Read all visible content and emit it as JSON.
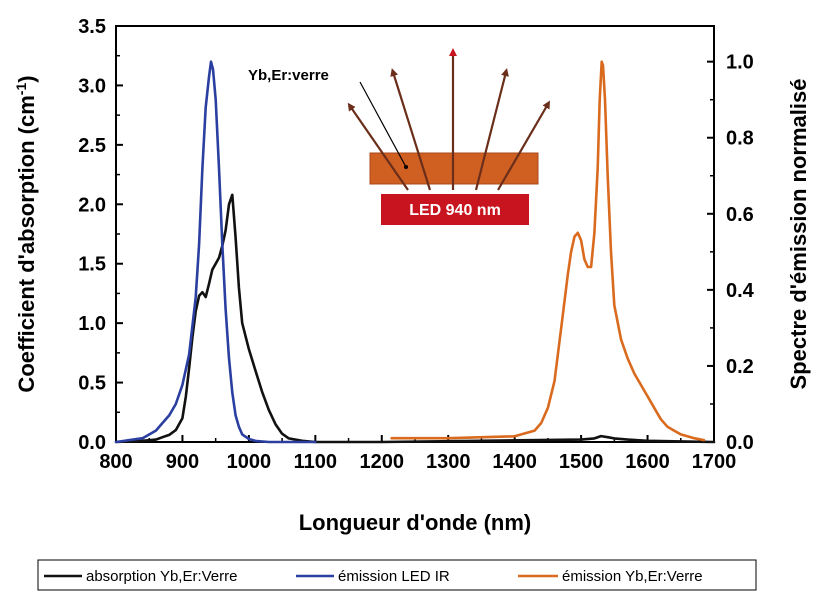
{
  "chart_data": {
    "type": "line",
    "xlabel": "Longueur d'onde (nm)",
    "ylabel_left": "Coefficient d'absorption (cm",
    "ylabel_left_sup": "-1",
    "ylabel_left_end": ")",
    "ylabel_right": "Spectre d'émission normalisé",
    "xlim": [
      800,
      1700
    ],
    "ylim_left": [
      0,
      3.5
    ],
    "ylim_right": [
      0,
      1.09375
    ],
    "x_ticks": [
      800,
      900,
      1000,
      1100,
      1200,
      1300,
      1400,
      1500,
      1600,
      1700
    ],
    "y_left_ticks": [
      "0.0",
      "0.5",
      "1.0",
      "1.5",
      "2.0",
      "2.5",
      "3.0",
      "3.5"
    ],
    "y_right_ticks": [
      "0.0",
      "0.2",
      "0.4",
      "0.6",
      "0.8",
      "1.0"
    ],
    "legend_position": "bottom",
    "series": [
      {
        "name": "absorption Yb,Er:Verre",
        "axis": "left",
        "color": "#111111",
        "x": [
          800,
          840,
          860,
          870,
          880,
          890,
          900,
          905,
          910,
          915,
          920,
          925,
          930,
          935,
          940,
          945,
          950,
          955,
          960,
          965,
          970,
          975,
          980,
          985,
          990,
          1000,
          1010,
          1020,
          1030,
          1040,
          1050,
          1060,
          1080,
          1100,
          1200,
          1500,
          1520,
          1530,
          1540,
          1550,
          1570,
          1600,
          1650,
          1700
        ],
        "y": [
          0.0,
          0.01,
          0.02,
          0.04,
          0.06,
          0.1,
          0.2,
          0.38,
          0.62,
          0.88,
          1.1,
          1.23,
          1.26,
          1.22,
          1.33,
          1.45,
          1.5,
          1.55,
          1.65,
          1.78,
          2.0,
          2.08,
          1.72,
          1.3,
          1.0,
          0.78,
          0.6,
          0.42,
          0.27,
          0.15,
          0.07,
          0.03,
          0.01,
          0.0,
          0.0,
          0.02,
          0.03,
          0.05,
          0.04,
          0.03,
          0.02,
          0.01,
          0.005,
          0.0
        ]
      },
      {
        "name": "émission LED IR",
        "axis": "right",
        "color": "#2b3fa0",
        "x": [
          800,
          840,
          860,
          870,
          880,
          890,
          900,
          910,
          920,
          925,
          930,
          935,
          940,
          943,
          946,
          950,
          955,
          960,
          965,
          970,
          975,
          980,
          985,
          990,
          1000,
          1010,
          1030,
          1100
        ],
        "y": [
          0.0,
          0.01,
          0.03,
          0.05,
          0.07,
          0.1,
          0.15,
          0.23,
          0.38,
          0.52,
          0.72,
          0.88,
          0.96,
          1.0,
          0.98,
          0.9,
          0.72,
          0.52,
          0.35,
          0.22,
          0.13,
          0.07,
          0.04,
          0.02,
          0.008,
          0.003,
          0.0,
          0.0
        ]
      },
      {
        "name": "émission Yb,Er:Verre",
        "axis": "right",
        "color": "#d96a1e",
        "x": [
          1215,
          1300,
          1400,
          1430,
          1440,
          1450,
          1460,
          1470,
          1480,
          1485,
          1490,
          1495,
          1500,
          1505,
          1510,
          1515,
          1520,
          1525,
          1528,
          1531,
          1533,
          1536,
          1540,
          1545,
          1550,
          1560,
          1570,
          1580,
          1590,
          1600,
          1610,
          1620,
          1630,
          1640,
          1650,
          1660,
          1670,
          1685
        ],
        "y": [
          0.01,
          0.01,
          0.015,
          0.03,
          0.05,
          0.09,
          0.16,
          0.3,
          0.44,
          0.5,
          0.54,
          0.55,
          0.53,
          0.48,
          0.46,
          0.46,
          0.55,
          0.72,
          0.9,
          1.0,
          0.99,
          0.9,
          0.7,
          0.5,
          0.36,
          0.27,
          0.22,
          0.18,
          0.15,
          0.12,
          0.09,
          0.06,
          0.04,
          0.03,
          0.02,
          0.015,
          0.01,
          0.005
        ]
      }
    ],
    "annotations": {
      "material_label": "Yb,Er:verre",
      "led_label": "LED 940 nm"
    }
  },
  "colors": {
    "absorption": "#111111",
    "led_emission": "#2b3fa0",
    "er_emission": "#d96a1e",
    "glass": "#d05f22",
    "led_box": "#c8141e",
    "arrow": "#6b2e1a"
  }
}
